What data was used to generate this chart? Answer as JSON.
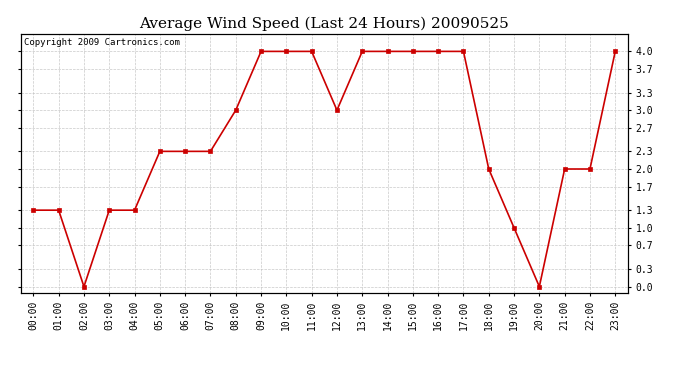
{
  "title": "Average Wind Speed (Last 24 Hours) 20090525",
  "copyright_text": "Copyright 2009 Cartronics.com",
  "x_labels": [
    "00:00",
    "01:00",
    "02:00",
    "03:00",
    "04:00",
    "05:00",
    "06:00",
    "07:00",
    "08:00",
    "09:00",
    "10:00",
    "11:00",
    "12:00",
    "13:00",
    "14:00",
    "15:00",
    "16:00",
    "17:00",
    "18:00",
    "19:00",
    "20:00",
    "21:00",
    "22:00",
    "23:00"
  ],
  "y_values": [
    1.3,
    1.3,
    0.0,
    1.3,
    1.3,
    2.3,
    2.3,
    2.3,
    3.0,
    4.0,
    4.0,
    4.0,
    3.0,
    4.0,
    4.0,
    4.0,
    4.0,
    4.0,
    2.0,
    1.0,
    0.0,
    2.0,
    2.0,
    4.0
  ],
  "y_ticks": [
    0.0,
    0.3,
    0.7,
    1.0,
    1.3,
    1.7,
    2.0,
    2.3,
    2.7,
    3.0,
    3.3,
    3.7,
    4.0
  ],
  "ylim": [
    -0.1,
    4.3
  ],
  "line_color": "#cc0000",
  "marker": "s",
  "marker_color": "#cc0000",
  "marker_size": 2.5,
  "bg_color": "#ffffff",
  "plot_bg_color": "#ffffff",
  "grid_color": "#bbbbbb",
  "title_fontsize": 11,
  "tick_fontsize": 7,
  "copyright_fontsize": 6.5
}
